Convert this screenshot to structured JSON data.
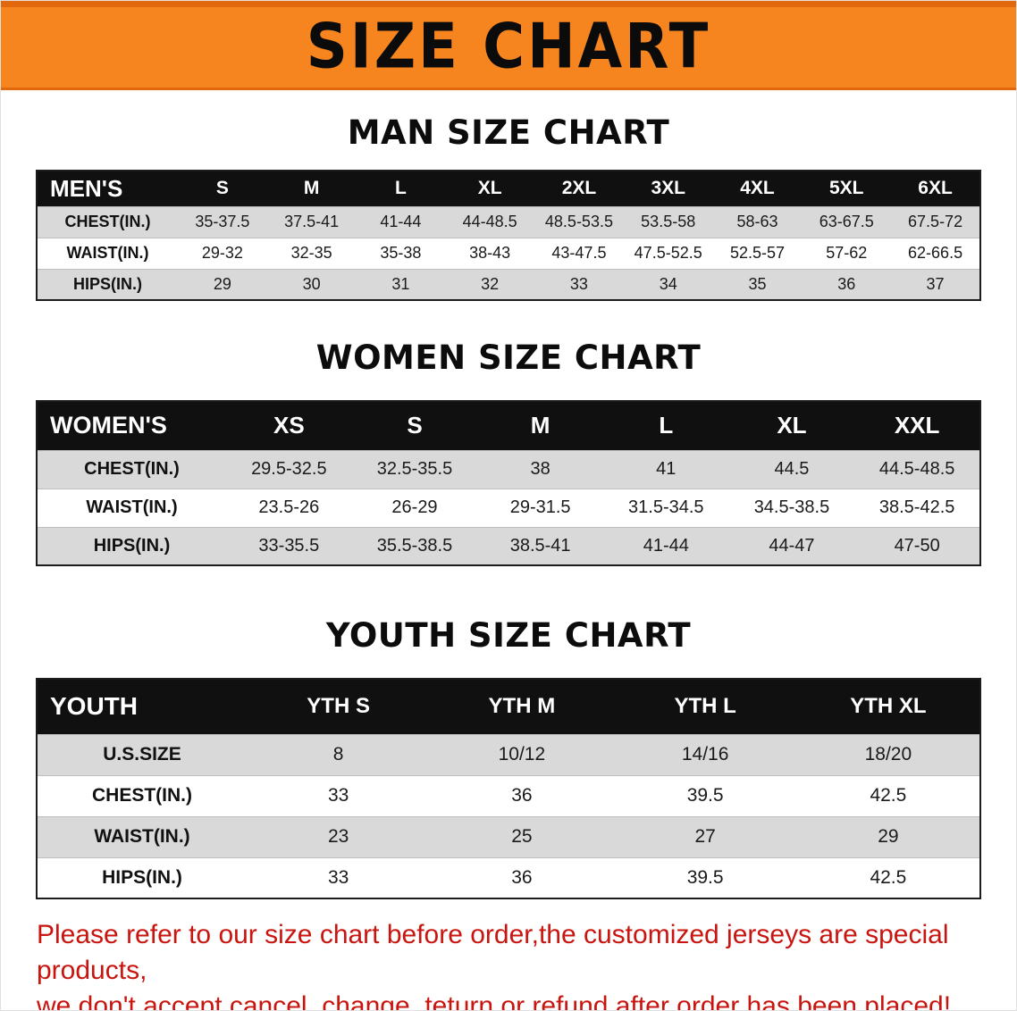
{
  "banner": {
    "title": "SIZE CHART",
    "bg_color": "#f6851f",
    "trim_color": "#e2680e"
  },
  "sections": [
    {
      "id": "men",
      "heading": "MAN SIZE CHART",
      "table": {
        "header": [
          "MEN'S",
          "S",
          "M",
          "L",
          "XL",
          "2XL",
          "3XL",
          "4XL",
          "5XL",
          "6XL"
        ],
        "rows": [
          {
            "label": "CHEST(IN.)",
            "values": [
              "35-37.5",
              "37.5-41",
              "41-44",
              "44-48.5",
              "48.5-53.5",
              "53.5-58",
              "58-63",
              "63-67.5",
              "67.5-72"
            ]
          },
          {
            "label": "WAIST(IN.)",
            "values": [
              "29-32",
              "32-35",
              "35-38",
              "38-43",
              "43-47.5",
              "47.5-52.5",
              "52.5-57",
              "57-62",
              "62-66.5"
            ]
          },
          {
            "label": "HIPS(IN.)",
            "values": [
              "29",
              "30",
              "31",
              "32",
              "33",
              "34",
              "35",
              "36",
              "37"
            ]
          }
        ]
      }
    },
    {
      "id": "women",
      "heading": "WOMEN SIZE CHART",
      "table": {
        "header": [
          "WOMEN'S",
          "XS",
          "S",
          "M",
          "L",
          "XL",
          "XXL"
        ],
        "rows": [
          {
            "label": "CHEST(IN.)",
            "values": [
              "29.5-32.5",
              "32.5-35.5",
              "38",
              "41",
              "44.5",
              "44.5-48.5"
            ]
          },
          {
            "label": "WAIST(IN.)",
            "values": [
              "23.5-26",
              "26-29",
              "29-31.5",
              "31.5-34.5",
              "34.5-38.5",
              "38.5-42.5"
            ]
          },
          {
            "label": "HIPS(IN.)",
            "values": [
              "33-35.5",
              "35.5-38.5",
              "38.5-41",
              "41-44",
              "44-47",
              "47-50"
            ]
          }
        ]
      }
    },
    {
      "id": "youth",
      "heading": "YOUTH SIZE CHART",
      "table": {
        "header": [
          "YOUTH",
          "YTH S",
          "YTH M",
          "YTH L",
          "YTH XL"
        ],
        "rows": [
          {
            "label": "U.S.SIZE",
            "values": [
              "8",
              "10/12",
              "14/16",
              "18/20"
            ]
          },
          {
            "label": "CHEST(IN.)",
            "values": [
              "33",
              "36",
              "39.5",
              "42.5"
            ]
          },
          {
            "label": "WAIST(IN.)",
            "values": [
              "23",
              "25",
              "27",
              "29"
            ]
          },
          {
            "label": "HIPS(IN.)",
            "values": [
              "33",
              "36",
              "39.5",
              "42.5"
            ]
          }
        ]
      }
    }
  ],
  "footer": {
    "color": "#c9150f",
    "line1": "Please refer to our size chart before order,the customized jerseys are special products,",
    "line2": "we don't accept cancel, change, teturn or refund after order has been placed!"
  }
}
